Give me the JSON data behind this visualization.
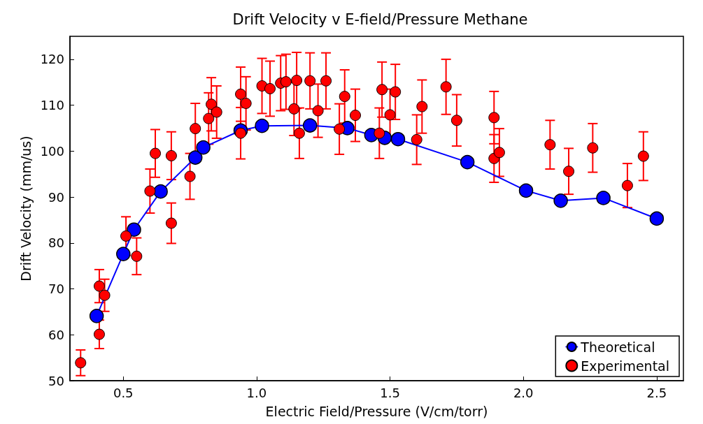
{
  "chart_data": {
    "type": "scatter",
    "title": "Drift Velocity v E-field/Pressure Methane",
    "xlabel": "Electric Field/Pressure (V/cm/torr)",
    "ylabel": "Drift Velocity (mm/us)",
    "xlim": [
      0.3,
      2.6
    ],
    "xticks": [
      0.5,
      {
        "value": 1,
        "label": "1.0"
      },
      1.5,
      {
        "value": 2,
        "label": "2.0"
      },
      2.5
    ],
    "ylim": [
      50,
      125
    ],
    "yticks": [
      50,
      60,
      70,
      80,
      90,
      100,
      110,
      120
    ],
    "grid": false,
    "legend": "bottom right",
    "marker": "circle",
    "series": [
      {
        "name": "Theoretical",
        "type": "line",
        "line_style": "solid",
        "color": "#0000ff",
        "x": [
          0.4,
          0.5,
          0.54,
          0.64,
          0.77,
          0.8,
          0.94,
          1.02,
          1.2,
          1.34,
          1.43,
          1.48,
          1.53,
          1.79,
          2.01,
          2.14,
          2.3,
          2.5
        ],
        "values": [
          64.1,
          77.6,
          82.9,
          91.2,
          98.6,
          100.8,
          104.5,
          105.5,
          105.6,
          105.0,
          103.5,
          102.9,
          102.6,
          97.6,
          91.4,
          89.2,
          89.8,
          85.3
        ]
      },
      {
        "name": "Experimental",
        "color": "#ff0000",
        "x": [
          0.34,
          0.41,
          0.41,
          0.43,
          0.51,
          0.55,
          0.6,
          0.62,
          0.68,
          0.68,
          0.75,
          0.77,
          0.82,
          0.83,
          0.85,
          0.94,
          0.96,
          0.94,
          1.02,
          1.05,
          1.09,
          1.11,
          1.14,
          1.15,
          1.16,
          1.2,
          1.23,
          1.26,
          1.31,
          1.33,
          1.37,
          1.46,
          1.47,
          1.5,
          1.52,
          1.6,
          1.62,
          1.71,
          1.75,
          1.89,
          1.89,
          1.91,
          2.1,
          2.17,
          2.26,
          2.39,
          2.45
        ],
        "values": [
          53.9,
          60.1,
          70.6,
          68.6,
          81.5,
          77.1,
          91.3,
          99.5,
          84.3,
          99.0,
          94.5,
          104.9,
          107.1,
          110.2,
          108.5,
          112.4,
          110.4,
          103.9,
          114.2,
          113.6,
          114.8,
          115.1,
          109.2,
          115.4,
          103.9,
          115.3,
          108.8,
          115.3,
          104.8,
          111.9,
          107.8,
          103.9,
          113.4,
          107.9,
          112.9,
          102.5,
          109.7,
          114.0,
          106.7,
          107.3,
          98.4,
          99.7,
          101.4,
          95.6,
          100.7,
          92.5,
          98.9
        ],
        "errors": [
          2.8,
          3.1,
          3.6,
          3.5,
          4.2,
          4.0,
          4.8,
          5.2,
          4.4,
          5.2,
          5.0,
          5.5,
          5.6,
          5.8,
          5.7,
          5.9,
          5.8,
          5.6,
          6.0,
          6.0,
          6.0,
          6.0,
          5.8,
          6.1,
          5.5,
          6.1,
          5.8,
          6.1,
          5.5,
          5.8,
          5.7,
          5.5,
          6.0,
          5.6,
          6.0,
          5.4,
          5.8,
          6.0,
          5.6,
          5.7,
          5.2,
          5.2,
          5.3,
          5.0,
          5.3,
          4.8,
          5.3
        ]
      }
    ]
  }
}
